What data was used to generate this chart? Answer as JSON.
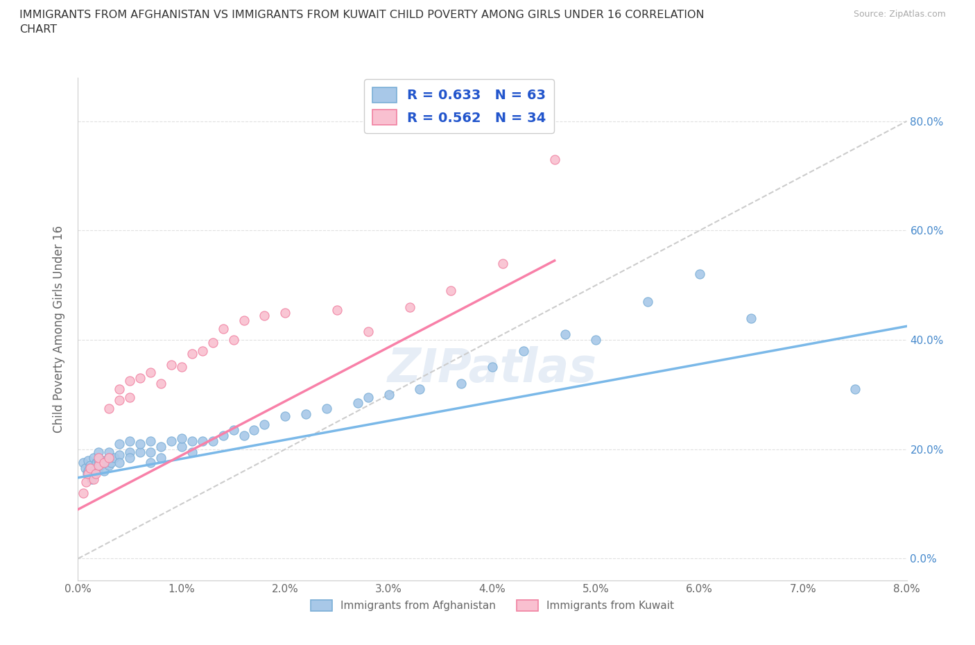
{
  "title": "IMMIGRANTS FROM AFGHANISTAN VS IMMIGRANTS FROM KUWAIT CHILD POVERTY AMONG GIRLS UNDER 16 CORRELATION\nCHART",
  "source_text": "Source: ZipAtlas.com",
  "ylabel": "Child Poverty Among Girls Under 16",
  "xlim": [
    0.0,
    0.08
  ],
  "ylim": [
    -0.04,
    0.88
  ],
  "xticks": [
    0.0,
    0.01,
    0.02,
    0.03,
    0.04,
    0.05,
    0.06,
    0.07,
    0.08
  ],
  "xticklabels": [
    "0.0%",
    "1.0%",
    "2.0%",
    "3.0%",
    "4.0%",
    "5.0%",
    "6.0%",
    "7.0%",
    "8.0%"
  ],
  "yticks": [
    0.0,
    0.2,
    0.4,
    0.6,
    0.8
  ],
  "yticklabels": [
    "0.0%",
    "20.0%",
    "40.0%",
    "60.0%",
    "80.0%"
  ],
  "afghanistan_color": "#a8c8e8",
  "kuwait_color": "#f9c0d0",
  "afghanistan_edge_color": "#7aaed6",
  "kuwait_edge_color": "#f080a0",
  "afghanistan_line_color": "#7ab8e8",
  "kuwait_line_color": "#f880a8",
  "ref_line_color": "#cccccc",
  "afghanistan_R": 0.633,
  "afghanistan_N": 63,
  "kuwait_R": 0.562,
  "kuwait_N": 34,
  "watermark": "ZIPatlas",
  "legend_color": "#2255cc",
  "afghanistan_trend_x0": 0.0,
  "afghanistan_trend_y0": 0.148,
  "afghanistan_trend_x1": 0.08,
  "afghanistan_trend_y1": 0.425,
  "kuwait_trend_x0": 0.0,
  "kuwait_trend_y0": 0.09,
  "kuwait_trend_x1": 0.046,
  "kuwait_trend_y1": 0.545,
  "ref_line_x0": 0.0,
  "ref_line_y0": 0.0,
  "ref_line_x1": 0.08,
  "ref_line_y1": 0.8,
  "afghanistan_scatter_x": [
    0.0005,
    0.0007,
    0.0009,
    0.001,
    0.001,
    0.0012,
    0.0013,
    0.0015,
    0.0015,
    0.0016,
    0.0018,
    0.002,
    0.002,
    0.002,
    0.0022,
    0.0025,
    0.0025,
    0.003,
    0.003,
    0.003,
    0.0032,
    0.0035,
    0.004,
    0.004,
    0.004,
    0.005,
    0.005,
    0.005,
    0.006,
    0.006,
    0.007,
    0.007,
    0.007,
    0.008,
    0.008,
    0.009,
    0.01,
    0.01,
    0.011,
    0.011,
    0.012,
    0.013,
    0.014,
    0.015,
    0.016,
    0.017,
    0.018,
    0.02,
    0.022,
    0.024,
    0.027,
    0.028,
    0.03,
    0.033,
    0.037,
    0.04,
    0.043,
    0.047,
    0.05,
    0.055,
    0.06,
    0.065,
    0.075
  ],
  "afghanistan_scatter_y": [
    0.175,
    0.165,
    0.155,
    0.18,
    0.16,
    0.17,
    0.145,
    0.16,
    0.185,
    0.155,
    0.175,
    0.18,
    0.165,
    0.195,
    0.17,
    0.18,
    0.16,
    0.185,
    0.17,
    0.195,
    0.175,
    0.185,
    0.19,
    0.21,
    0.175,
    0.195,
    0.215,
    0.185,
    0.195,
    0.21,
    0.195,
    0.215,
    0.175,
    0.205,
    0.185,
    0.215,
    0.205,
    0.22,
    0.195,
    0.215,
    0.215,
    0.215,
    0.225,
    0.235,
    0.225,
    0.235,
    0.245,
    0.26,
    0.265,
    0.275,
    0.285,
    0.295,
    0.3,
    0.31,
    0.32,
    0.35,
    0.38,
    0.41,
    0.4,
    0.47,
    0.52,
    0.44,
    0.31
  ],
  "kuwait_scatter_x": [
    0.0005,
    0.0008,
    0.001,
    0.0012,
    0.0015,
    0.0017,
    0.002,
    0.002,
    0.0025,
    0.003,
    0.003,
    0.004,
    0.004,
    0.005,
    0.005,
    0.006,
    0.007,
    0.008,
    0.009,
    0.01,
    0.011,
    0.012,
    0.013,
    0.014,
    0.015,
    0.016,
    0.018,
    0.02,
    0.025,
    0.028,
    0.032,
    0.036,
    0.041,
    0.046
  ],
  "kuwait_scatter_y": [
    0.12,
    0.14,
    0.155,
    0.165,
    0.145,
    0.155,
    0.17,
    0.185,
    0.175,
    0.185,
    0.275,
    0.29,
    0.31,
    0.295,
    0.325,
    0.33,
    0.34,
    0.32,
    0.355,
    0.35,
    0.375,
    0.38,
    0.395,
    0.42,
    0.4,
    0.435,
    0.445,
    0.45,
    0.455,
    0.415,
    0.46,
    0.49,
    0.54,
    0.73
  ]
}
